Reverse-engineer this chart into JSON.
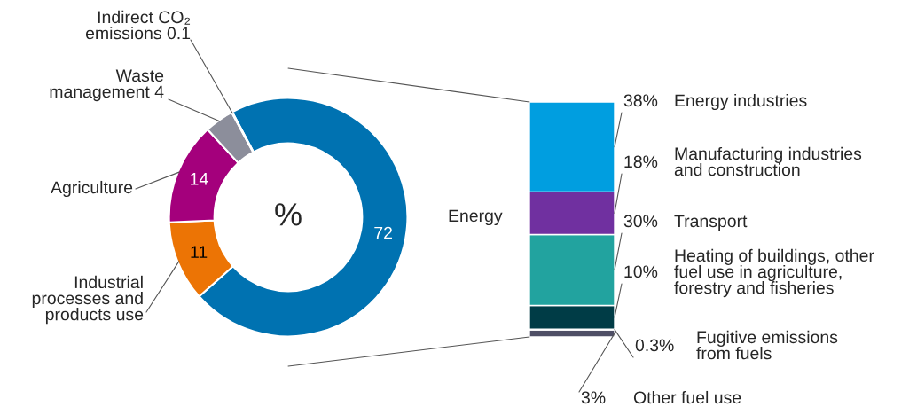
{
  "chart_data": [
    {
      "type": "donut",
      "categories": [
        "Energy",
        "Industrial\nprocesses and\nproducts use",
        "Agriculture",
        "Waste\nmanagement",
        "Indirect CO₂\nemissions"
      ],
      "values": [
        72,
        11,
        14,
        4,
        0.1
      ],
      "colors": [
        "#0072b1",
        "#ec7405",
        "#a4007c",
        "#8c8e9b",
        "#5a5a6e"
      ],
      "value_labels": [
        "72",
        "11",
        "14",
        "4",
        "0.1"
      ],
      "annotations": [
        "%"
      ]
    },
    {
      "type": "bar",
      "stacked": true,
      "categories": [
        null
      ],
      "series": [
        {
          "name": "Other fuel use",
          "color": "#4f4f66",
          "values": [
            3
          ],
          "value_labels": [
            "3%"
          ]
        },
        {
          "name": "Fugitive emissions\nfrom fuels",
          "color": "#9a9aa8",
          "values": [
            0.3
          ],
          "value_labels": [
            "0.3%"
          ]
        },
        {
          "name": "Heating of buildings, other\nfuel use in agriculture,\nforestry and fisheries",
          "color": "#003c46",
          "values": [
            10
          ],
          "value_labels": [
            "10%"
          ]
        },
        {
          "name": "Transport",
          "color": "#22a39f",
          "values": [
            30
          ],
          "value_labels": [
            "30%"
          ]
        },
        {
          "name": "Manufacturing industries\nand construction",
          "color": "#7030a0",
          "values": [
            18
          ],
          "value_labels": [
            "18%"
          ]
        },
        {
          "name": "Energy industries",
          "color": "#009ee0",
          "values": [
            38
          ],
          "value_labels": [
            "38%"
          ]
        }
      ]
    }
  ]
}
